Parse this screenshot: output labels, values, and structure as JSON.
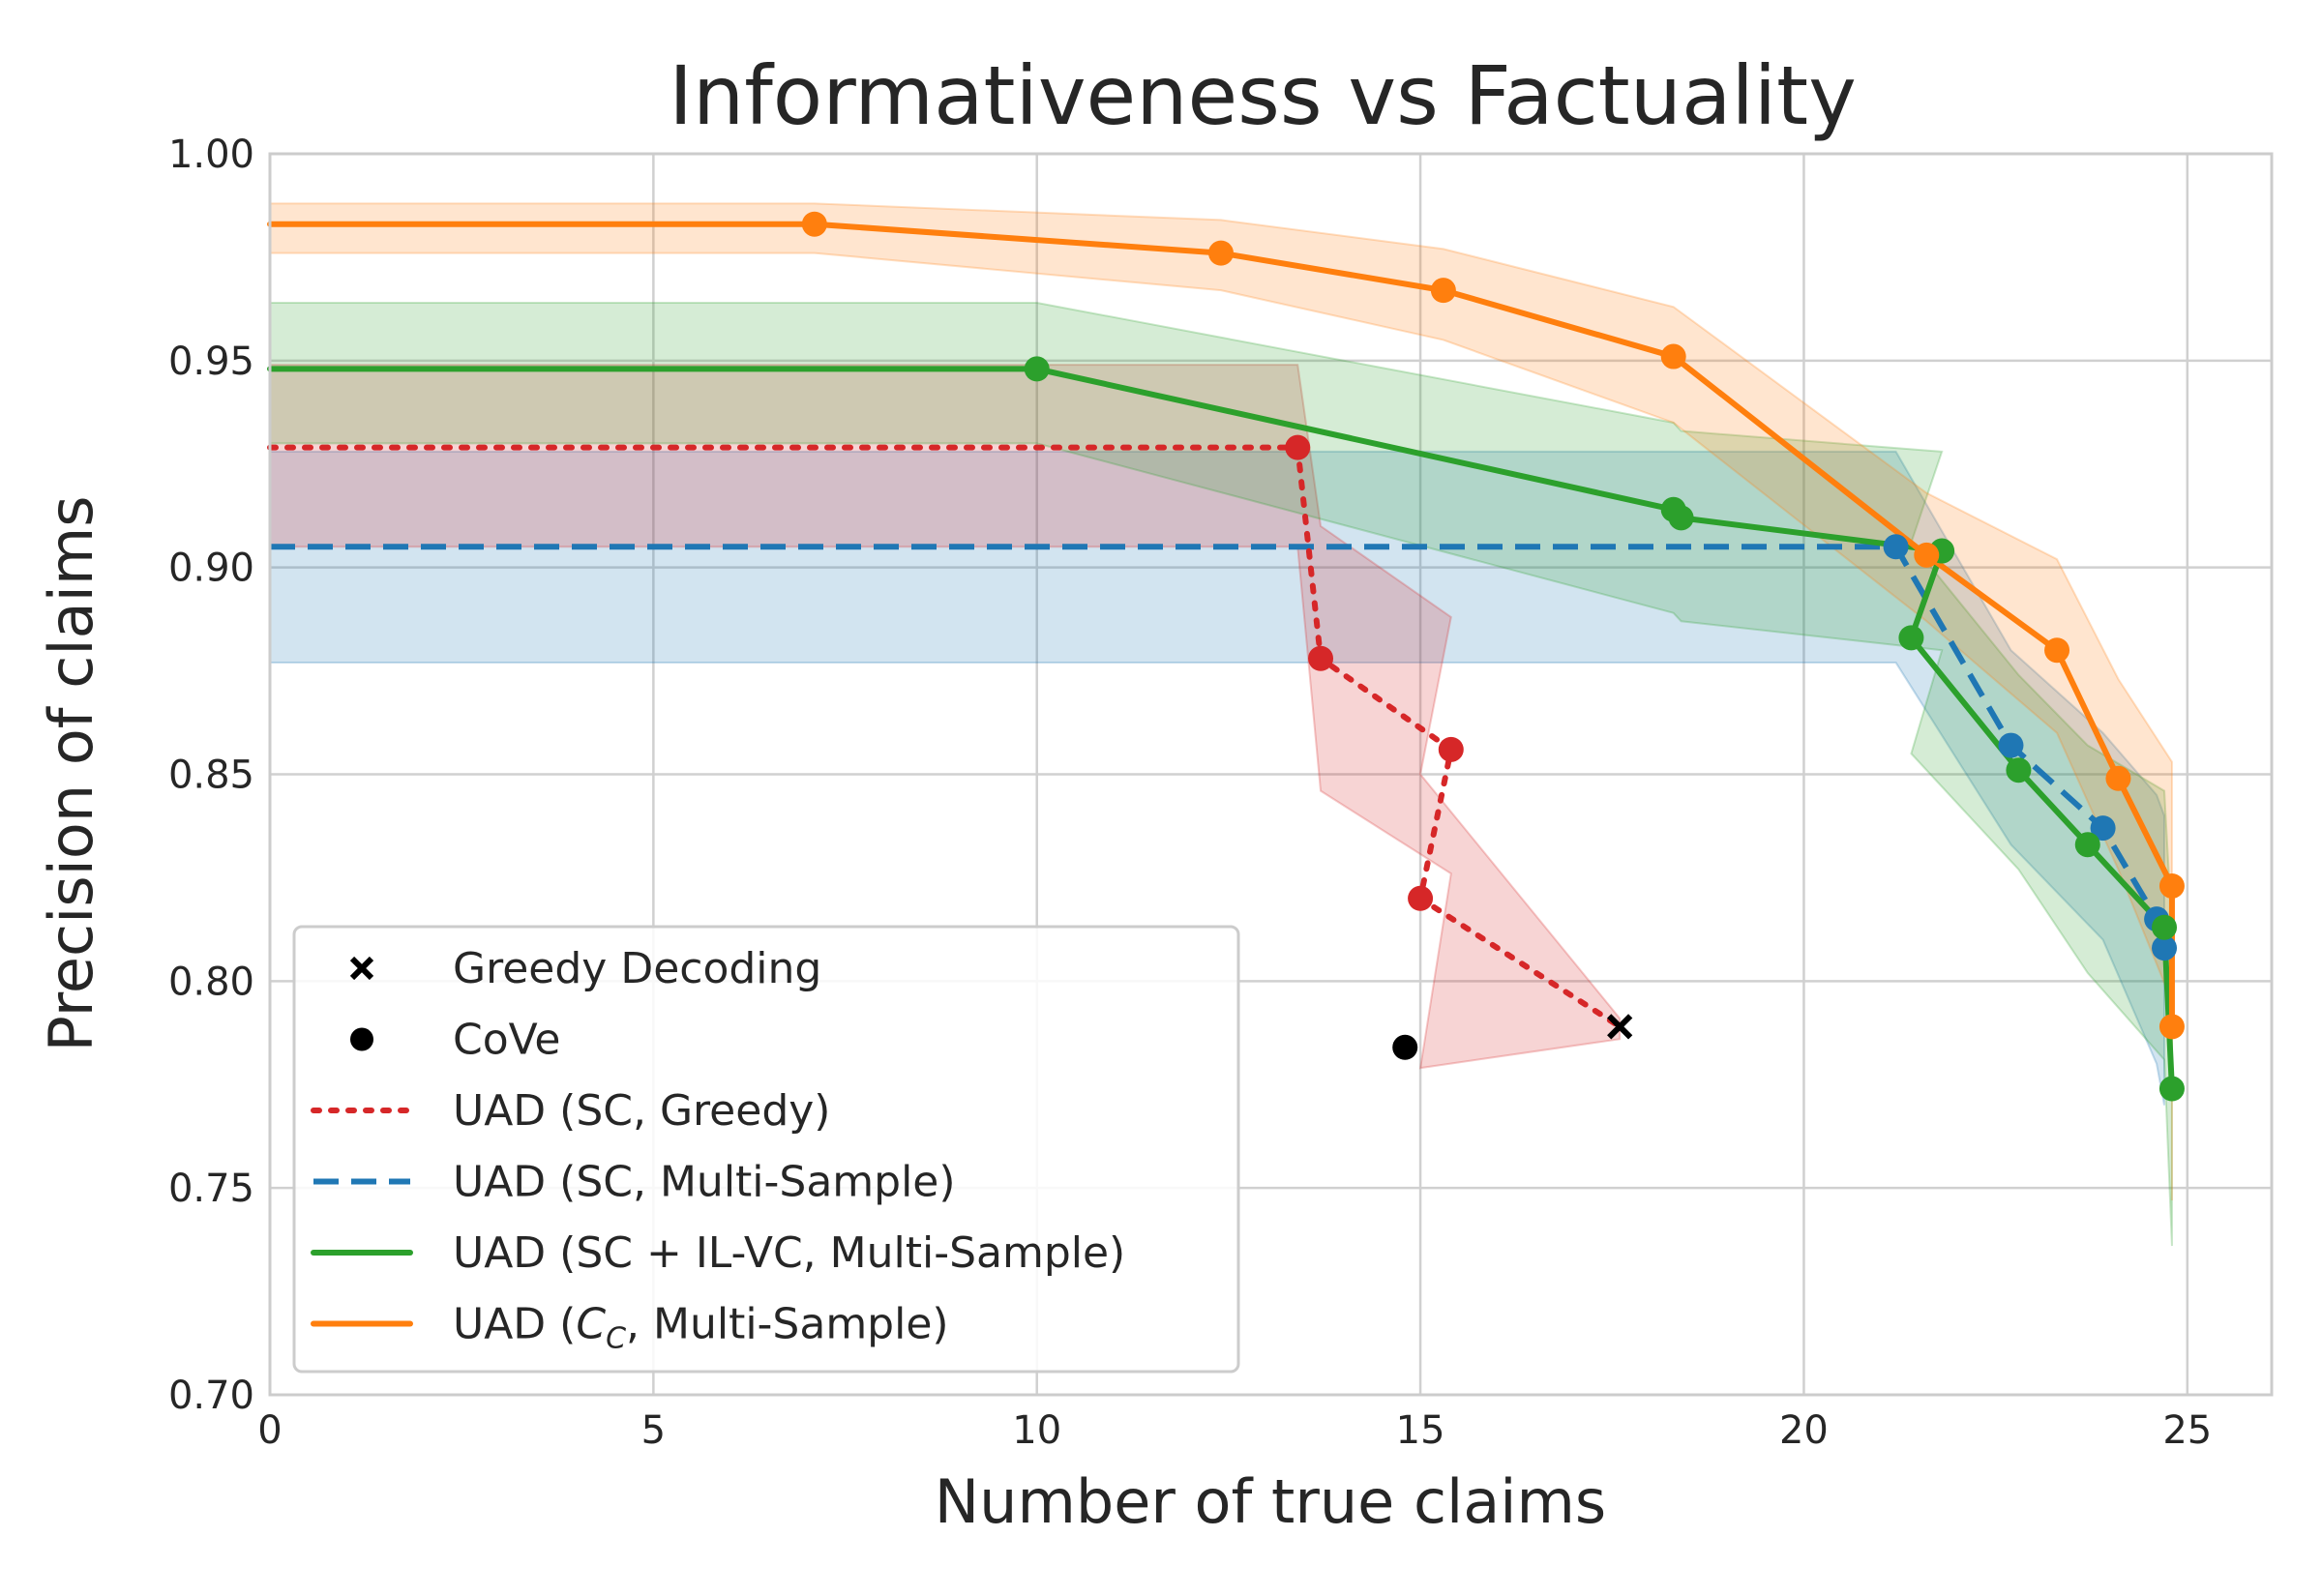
{
  "chart_data": {
    "type": "line",
    "title": "Informativeness vs Factuality",
    "xlabel": "Number of true claims",
    "ylabel": "Precision of claims",
    "xlim": [
      0,
      26.1
    ],
    "ylim": [
      0.7,
      1.0
    ],
    "xticks": [
      "0",
      "5",
      "10",
      "15",
      "20",
      "25"
    ],
    "yticks": [
      "0.70",
      "0.75",
      "0.80",
      "0.85",
      "0.90",
      "0.95",
      "1.00"
    ],
    "grid": true,
    "legend_position": "lower-left",
    "legend": [
      {
        "label": "Greedy Decoding",
        "kind": "marker-x",
        "color": "#000000"
      },
      {
        "label": "CoVe",
        "kind": "marker-dot",
        "color": "#000000"
      },
      {
        "label": "UAD (SC, Greedy)",
        "kind": "dotted",
        "color": "#d62728"
      },
      {
        "label": "UAD (SC, Multi-Sample)",
        "kind": "dashed",
        "color": "#1f77b4"
      },
      {
        "label": "UAD (SC + IL-VC, Multi-Sample)",
        "kind": "solid",
        "color": "#2ca02c"
      },
      {
        "label": "UAD (C_C, Multi-Sample)",
        "kind": "solid",
        "color": "#ff7f0e"
      }
    ],
    "legend_cc_text": {
      "prefix": "UAD (",
      "symbol": "C",
      "subscript": "C",
      "suffix": ", Multi-Sample)"
    },
    "points": {
      "greedy": {
        "x": 17.6,
        "y": 0.789
      },
      "cove": {
        "x": 14.8,
        "y": 0.784
      }
    },
    "series": [
      {
        "name": "UAD (SC, Multi-Sample)",
        "color": "#1f77b4",
        "style": "dashed",
        "x": [
          0,
          21.2,
          22.7,
          23.9,
          24.6,
          24.7
        ],
        "y": [
          0.905,
          0.905,
          0.857,
          0.837,
          0.815,
          0.808
        ],
        "band_upper": [
          0.928,
          0.928,
          0.88,
          0.86,
          0.845,
          0.84
        ],
        "band_lower": [
          0.877,
          0.877,
          0.833,
          0.81,
          0.78,
          0.77
        ]
      },
      {
        "name": "UAD (SC, Greedy)",
        "color": "#d62728",
        "style": "dotted",
        "x": [
          0,
          13.4,
          13.7,
          15.4,
          15.0,
          17.6
        ],
        "y": [
          0.929,
          0.929,
          0.878,
          0.856,
          0.82,
          0.789
        ],
        "band_upper": [
          0.949,
          0.949,
          0.91,
          0.888,
          0.85,
          0.791
        ],
        "band_lower": [
          0.905,
          0.905,
          0.846,
          0.826,
          0.779,
          0.786
        ]
      },
      {
        "name": "UAD (SC + IL-VC, Multi-Sample)",
        "color": "#2ca02c",
        "style": "solid",
        "x": [
          0,
          10.0,
          18.3,
          18.4,
          21.8,
          21.4,
          22.8,
          23.7,
          24.7,
          24.8
        ],
        "y": [
          0.948,
          0.948,
          0.914,
          0.912,
          0.904,
          0.883,
          0.851,
          0.833,
          0.813,
          0.774
        ],
        "band_upper": [
          0.964,
          0.964,
          0.935,
          0.933,
          0.928,
          0.906,
          0.874,
          0.857,
          0.846,
          0.812
        ],
        "band_lower": [
          0.93,
          0.93,
          0.889,
          0.887,
          0.88,
          0.855,
          0.827,
          0.802,
          0.781,
          0.736
        ]
      },
      {
        "name": "UAD (C_C, Multi-Sample)",
        "color": "#ff7f0e",
        "style": "solid",
        "x": [
          0,
          7.1,
          12.4,
          15.3,
          18.3,
          21.6,
          23.3,
          24.1,
          24.8,
          24.8
        ],
        "y": [
          0.983,
          0.983,
          0.976,
          0.967,
          0.951,
          0.903,
          0.88,
          0.849,
          0.823,
          0.789
        ],
        "band_upper": [
          0.988,
          0.988,
          0.984,
          0.977,
          0.963,
          0.918,
          0.902,
          0.873,
          0.853,
          0.83
        ],
        "band_lower": [
          0.976,
          0.976,
          0.967,
          0.955,
          0.935,
          0.887,
          0.86,
          0.827,
          0.795,
          0.747
        ]
      }
    ]
  }
}
